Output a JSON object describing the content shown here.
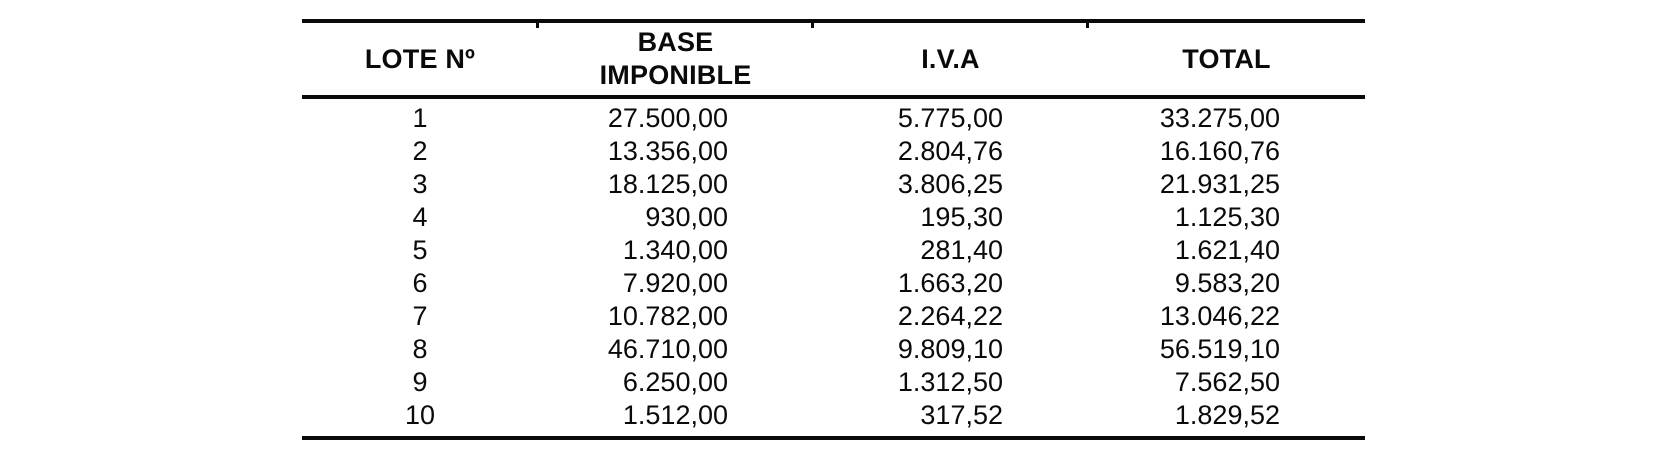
{
  "document": {
    "table": {
      "columns": [
        {
          "id": "lote",
          "label": "LOTE Nº"
        },
        {
          "id": "base_imponible",
          "label": "BASE\nIMPONIBLE"
        },
        {
          "id": "iva",
          "label": "I.V.A"
        },
        {
          "id": "total",
          "label": "TOTAL"
        }
      ],
      "rows": [
        [
          "1",
          "27.500,00",
          "5.775,00",
          "33.275,00"
        ],
        [
          "2",
          "13.356,00",
          "2.804,76",
          "16.160,76"
        ],
        [
          "3",
          "18.125,00",
          "3.806,25",
          "21.931,25"
        ],
        [
          "4",
          "930,00",
          "195,30",
          "1.125,30"
        ],
        [
          "5",
          "1.340,00",
          "281,40",
          "1.621,40"
        ],
        [
          "6",
          "7.920,00",
          "1.663,20",
          "9.583,20"
        ],
        [
          "7",
          "10.782,00",
          "2.264,22",
          "13.046,22"
        ],
        [
          "8",
          "46.710,00",
          "9.809,10",
          "56.519,10"
        ],
        [
          "9",
          "6.250,00",
          "1.312,50",
          "7.562,50"
        ],
        [
          "10",
          "1.512,00",
          "317,52",
          "1.829,52"
        ]
      ]
    },
    "colors": {
      "text": "#0a0a0a",
      "rule": "#0a0a0a",
      "background": "#ffffff"
    }
  }
}
